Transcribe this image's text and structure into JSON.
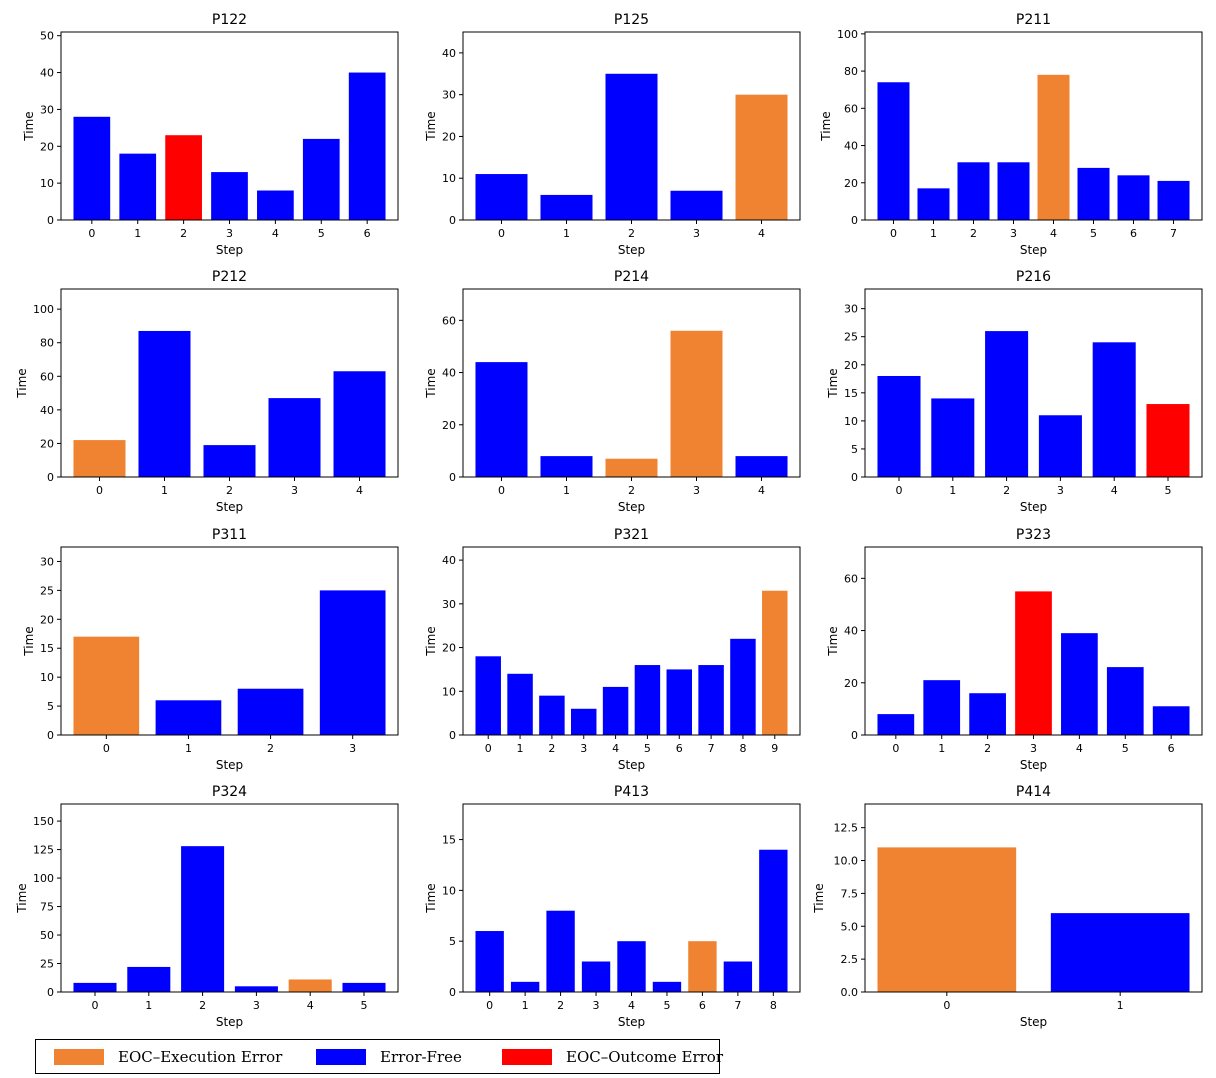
{
  "colors": {
    "error_free": "#0000ff",
    "execution_error": "#f08331",
    "outcome_error": "#ff0000"
  },
  "legend": [
    {
      "label": "EOC–Execution Error",
      "key": "execution_error"
    },
    {
      "label": "Error-Free",
      "key": "error_free"
    },
    {
      "label": "EOC–Outcome Error",
      "key": "outcome_error"
    }
  ],
  "chart_data": [
    {
      "type": "bar",
      "title": "P122",
      "xlabel": "Step",
      "ylabel": "Time",
      "ylim": [
        0,
        51
      ],
      "yticks": [
        "0",
        "10",
        "20",
        "30",
        "40",
        "50"
      ],
      "ytick_values": [
        0,
        10,
        20,
        30,
        40,
        50
      ],
      "categories": [
        "0",
        "1",
        "2",
        "3",
        "4",
        "5",
        "6"
      ],
      "values": [
        28,
        18,
        23,
        13,
        8,
        22,
        40
      ],
      "status": [
        "error_free",
        "error_free",
        "outcome_error",
        "error_free",
        "error_free",
        "error_free",
        "error_free"
      ]
    },
    {
      "type": "bar",
      "title": "P125",
      "xlabel": "Step",
      "ylabel": "Time",
      "ylim": [
        0,
        45
      ],
      "yticks": [
        "0",
        "10",
        "20",
        "30",
        "40"
      ],
      "ytick_values": [
        0,
        10,
        20,
        30,
        40
      ],
      "categories": [
        "0",
        "1",
        "2",
        "3",
        "4"
      ],
      "values": [
        11,
        6,
        35,
        7,
        30
      ],
      "status": [
        "error_free",
        "error_free",
        "error_free",
        "error_free",
        "execution_error"
      ]
    },
    {
      "type": "bar",
      "title": "P211",
      "xlabel": "Step",
      "ylabel": "Time",
      "ylim": [
        0,
        101
      ],
      "yticks": [
        "0",
        "20",
        "40",
        "60",
        "80",
        "100"
      ],
      "ytick_values": [
        0,
        20,
        40,
        60,
        80,
        100
      ],
      "categories": [
        "0",
        "1",
        "2",
        "3",
        "4",
        "5",
        "6",
        "7"
      ],
      "values": [
        74,
        17,
        31,
        31,
        78,
        28,
        24,
        21
      ],
      "status": [
        "error_free",
        "error_free",
        "error_free",
        "error_free",
        "execution_error",
        "error_free",
        "error_free",
        "error_free"
      ]
    },
    {
      "type": "bar",
      "title": "P212",
      "xlabel": "Step",
      "ylabel": "Time",
      "ylim": [
        0,
        112
      ],
      "yticks": [
        "0",
        "20",
        "40",
        "60",
        "80",
        "100"
      ],
      "ytick_values": [
        0,
        20,
        40,
        60,
        80,
        100
      ],
      "categories": [
        "0",
        "1",
        "2",
        "3",
        "4"
      ],
      "values": [
        22,
        87,
        19,
        47,
        63
      ],
      "status": [
        "execution_error",
        "error_free",
        "error_free",
        "error_free",
        "error_free"
      ]
    },
    {
      "type": "bar",
      "title": "P214",
      "xlabel": "Step",
      "ylabel": "Time",
      "ylim": [
        0,
        72
      ],
      "yticks": [
        "0",
        "20",
        "40",
        "60"
      ],
      "ytick_values": [
        0,
        20,
        40,
        60
      ],
      "categories": [
        "0",
        "1",
        "2",
        "3",
        "4"
      ],
      "values": [
        44,
        8,
        7,
        56,
        8
      ],
      "status": [
        "error_free",
        "error_free",
        "execution_error",
        "execution_error",
        "error_free"
      ]
    },
    {
      "type": "bar",
      "title": "P216",
      "xlabel": "Step",
      "ylabel": "Time",
      "ylim": [
        0,
        33.5
      ],
      "yticks": [
        "0",
        "5",
        "10",
        "15",
        "20",
        "25",
        "30"
      ],
      "ytick_values": [
        0,
        5,
        10,
        15,
        20,
        25,
        30
      ],
      "categories": [
        "0",
        "1",
        "2",
        "3",
        "4",
        "5"
      ],
      "values": [
        18,
        14,
        26,
        11,
        24,
        13
      ],
      "status": [
        "error_free",
        "error_free",
        "error_free",
        "error_free",
        "error_free",
        "outcome_error"
      ]
    },
    {
      "type": "bar",
      "title": "P311",
      "xlabel": "Step",
      "ylabel": "Time",
      "ylim": [
        0,
        32.5
      ],
      "yticks": [
        "0",
        "5",
        "10",
        "15",
        "20",
        "25",
        "30"
      ],
      "ytick_values": [
        0,
        5,
        10,
        15,
        20,
        25,
        30
      ],
      "categories": [
        "0",
        "1",
        "2",
        "3"
      ],
      "values": [
        17,
        6,
        8,
        25
      ],
      "status": [
        "execution_error",
        "error_free",
        "error_free",
        "error_free"
      ]
    },
    {
      "type": "bar",
      "title": "P321",
      "xlabel": "Step",
      "ylabel": "Time",
      "ylim": [
        0,
        43
      ],
      "yticks": [
        "0",
        "10",
        "20",
        "30",
        "40"
      ],
      "ytick_values": [
        0,
        10,
        20,
        30,
        40
      ],
      "categories": [
        "0",
        "1",
        "2",
        "3",
        "4",
        "5",
        "6",
        "7",
        "8",
        "9"
      ],
      "values": [
        18,
        14,
        9,
        6,
        11,
        16,
        15,
        16,
        22,
        33
      ],
      "status": [
        "error_free",
        "error_free",
        "error_free",
        "error_free",
        "error_free",
        "error_free",
        "error_free",
        "error_free",
        "error_free",
        "execution_error"
      ]
    },
    {
      "type": "bar",
      "title": "P323",
      "xlabel": "Step",
      "ylabel": "Time",
      "ylim": [
        0,
        72
      ],
      "yticks": [
        "0",
        "20",
        "40",
        "60"
      ],
      "ytick_values": [
        0,
        20,
        40,
        60
      ],
      "categories": [
        "0",
        "1",
        "2",
        "3",
        "4",
        "5",
        "6"
      ],
      "values": [
        8,
        21,
        16,
        55,
        39,
        26,
        11
      ],
      "status": [
        "error_free",
        "error_free",
        "error_free",
        "outcome_error",
        "error_free",
        "error_free",
        "error_free"
      ]
    },
    {
      "type": "bar",
      "title": "P324",
      "xlabel": "Step",
      "ylabel": "Time",
      "ylim": [
        0,
        165
      ],
      "yticks": [
        "0",
        "25",
        "50",
        "75",
        "100",
        "125",
        "150"
      ],
      "ytick_values": [
        0,
        25,
        50,
        75,
        100,
        125,
        150
      ],
      "categories": [
        "0",
        "1",
        "2",
        "3",
        "4",
        "5"
      ],
      "values": [
        8,
        22,
        128,
        5,
        11,
        8
      ],
      "status": [
        "error_free",
        "error_free",
        "error_free",
        "error_free",
        "execution_error",
        "error_free"
      ]
    },
    {
      "type": "bar",
      "title": "P413",
      "xlabel": "Step",
      "ylabel": "Time",
      "ylim": [
        0,
        18.5
      ],
      "yticks": [
        "0",
        "5",
        "10",
        "15"
      ],
      "ytick_values": [
        0,
        5,
        10,
        15
      ],
      "categories": [
        "0",
        "1",
        "2",
        "3",
        "4",
        "5",
        "6",
        "7",
        "8"
      ],
      "values": [
        6,
        1,
        8,
        3,
        5,
        1,
        5,
        3,
        14
      ],
      "status": [
        "error_free",
        "error_free",
        "error_free",
        "error_free",
        "error_free",
        "error_free",
        "execution_error",
        "error_free",
        "error_free"
      ]
    },
    {
      "type": "bar",
      "title": "P414",
      "xlabel": "Step",
      "ylabel": "Time",
      "ylim": [
        0,
        14.3
      ],
      "yticks": [
        "0.0",
        "2.5",
        "5.0",
        "7.5",
        "10.0",
        "12.5"
      ],
      "ytick_values": [
        0,
        2.5,
        5,
        7.5,
        10,
        12.5
      ],
      "categories": [
        "0",
        "1"
      ],
      "values": [
        11,
        6
      ],
      "status": [
        "execution_error",
        "error_free"
      ]
    }
  ]
}
